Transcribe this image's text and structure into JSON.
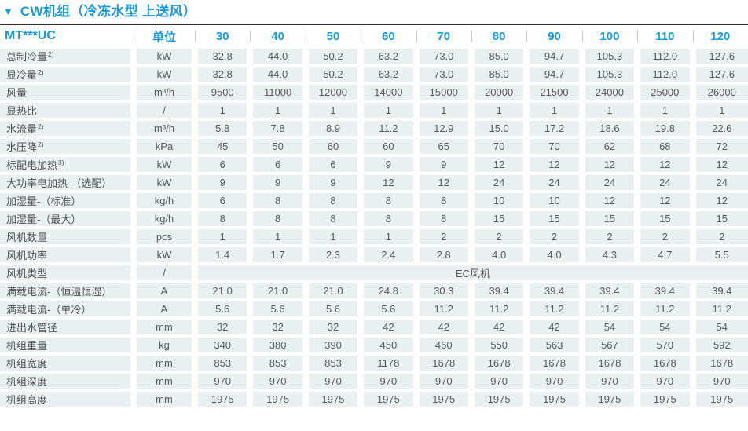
{
  "colors": {
    "accent": "#1a9ad7",
    "cell_bg": "#e8f0f1",
    "value_text": "#58595b",
    "label_text": "#4d4e50",
    "rule": "#333333",
    "header_separator": "#c4c6c8"
  },
  "title": {
    "collapse_icon": "▼",
    "text": "CW机组（冷冻水型 上送风）"
  },
  "table": {
    "model_header": "MT***UC",
    "unit_header": "单位",
    "columns": [
      "30",
      "40",
      "50",
      "60",
      "70",
      "80",
      "90",
      "100",
      "110",
      "120"
    ],
    "rows": [
      {
        "label": "总制冷量",
        "sup": "2)",
        "unit": "kW",
        "values": [
          "32.8",
          "44.0",
          "50.2",
          "63.2",
          "73.0",
          "85.0",
          "94.7",
          "105.3",
          "112.0",
          "127.6"
        ]
      },
      {
        "label": "显冷量",
        "sup": "2)",
        "unit": "kW",
        "values": [
          "32.8",
          "44.0",
          "50.2",
          "63.2",
          "73.0",
          "85.0",
          "94.7",
          "105.3",
          "112.0",
          "127.6"
        ]
      },
      {
        "label": "风量",
        "unit": "m³/h",
        "values": [
          "9500",
          "11000",
          "12000",
          "14000",
          "15000",
          "20000",
          "21500",
          "24000",
          "25000",
          "26000"
        ]
      },
      {
        "label": "显热比",
        "unit": "/",
        "values": [
          "1",
          "1",
          "1",
          "1",
          "1",
          "1",
          "1",
          "1",
          "1",
          "1"
        ]
      },
      {
        "label": "水流量",
        "sup": "2)",
        "unit": "m³/h",
        "values": [
          "5.8",
          "7.8",
          "8.9",
          "11.2",
          "12.9",
          "15.0",
          "17.2",
          "18.6",
          "19.8",
          "22.6"
        ]
      },
      {
        "label": "水压降",
        "sup": "2)",
        "unit": "kPa",
        "values": [
          "45",
          "50",
          "60",
          "60",
          "65",
          "70",
          "70",
          "62",
          "68",
          "72"
        ]
      },
      {
        "label": "标配电加热",
        "sup": "3)",
        "unit": "kW",
        "values": [
          "6",
          "6",
          "6",
          "9",
          "9",
          "12",
          "12",
          "12",
          "12",
          "12"
        ]
      },
      {
        "label": "大功率电加热-（选配）",
        "unit": "kW",
        "values": [
          "9",
          "9",
          "9",
          "12",
          "12",
          "24",
          "24",
          "24",
          "24",
          "24"
        ]
      },
      {
        "label": "加湿量-（标准）",
        "unit": "kg/h",
        "values": [
          "6",
          "8",
          "8",
          "8",
          "8",
          "10",
          "10",
          "12",
          "12",
          "12"
        ]
      },
      {
        "label": "加湿量-（最大）",
        "unit": "kg/h",
        "values": [
          "8",
          "8",
          "8",
          "8",
          "8",
          "15",
          "15",
          "15",
          "15",
          "15"
        ]
      },
      {
        "label": "风机数量",
        "unit": "pcs",
        "values": [
          "1",
          "1",
          "1",
          "1",
          "2",
          "2",
          "2",
          "2",
          "2",
          "2"
        ]
      },
      {
        "label": "风机功率",
        "unit": "kW",
        "values": [
          "1.4",
          "1.7",
          "2.3",
          "2.4",
          "2.8",
          "4.0",
          "4.0",
          "4.3",
          "4.7",
          "5.5"
        ]
      },
      {
        "label": "风机类型",
        "unit": "/",
        "merged": "EC风机"
      },
      {
        "label": "满载电流-（恒温恒湿）",
        "unit": "A",
        "values": [
          "21.0",
          "21.0",
          "21.0",
          "24.8",
          "30.3",
          "39.4",
          "39.4",
          "39.4",
          "39.4",
          "39.4"
        ]
      },
      {
        "label": "满载电流-（单冷）",
        "unit": "A",
        "values": [
          "5.6",
          "5.6",
          "5.6",
          "5.6",
          "11.2",
          "11.2",
          "11.2",
          "11.2",
          "11.2",
          "11.2"
        ]
      },
      {
        "label": "进出水管径",
        "unit": "mm",
        "values": [
          "32",
          "32",
          "32",
          "42",
          "42",
          "42",
          "42",
          "54",
          "54",
          "54"
        ]
      },
      {
        "label": "机组重量",
        "unit": "kg",
        "values": [
          "340",
          "380",
          "390",
          "450",
          "460",
          "550",
          "563",
          "567",
          "570",
          "592"
        ]
      },
      {
        "label": "机组宽度",
        "unit": "mm",
        "values": [
          "853",
          "853",
          "853",
          "1178",
          "1678",
          "1678",
          "1678",
          "1678",
          "1678",
          "1678"
        ]
      },
      {
        "label": "机组深度",
        "unit": "mm",
        "values": [
          "970",
          "970",
          "970",
          "970",
          "970",
          "970",
          "970",
          "970",
          "970",
          "970"
        ]
      },
      {
        "label": "机组高度",
        "unit": "mm",
        "values": [
          "1975",
          "1975",
          "1975",
          "1975",
          "1975",
          "1975",
          "1975",
          "1975",
          "1975",
          "1975"
        ]
      }
    ]
  }
}
